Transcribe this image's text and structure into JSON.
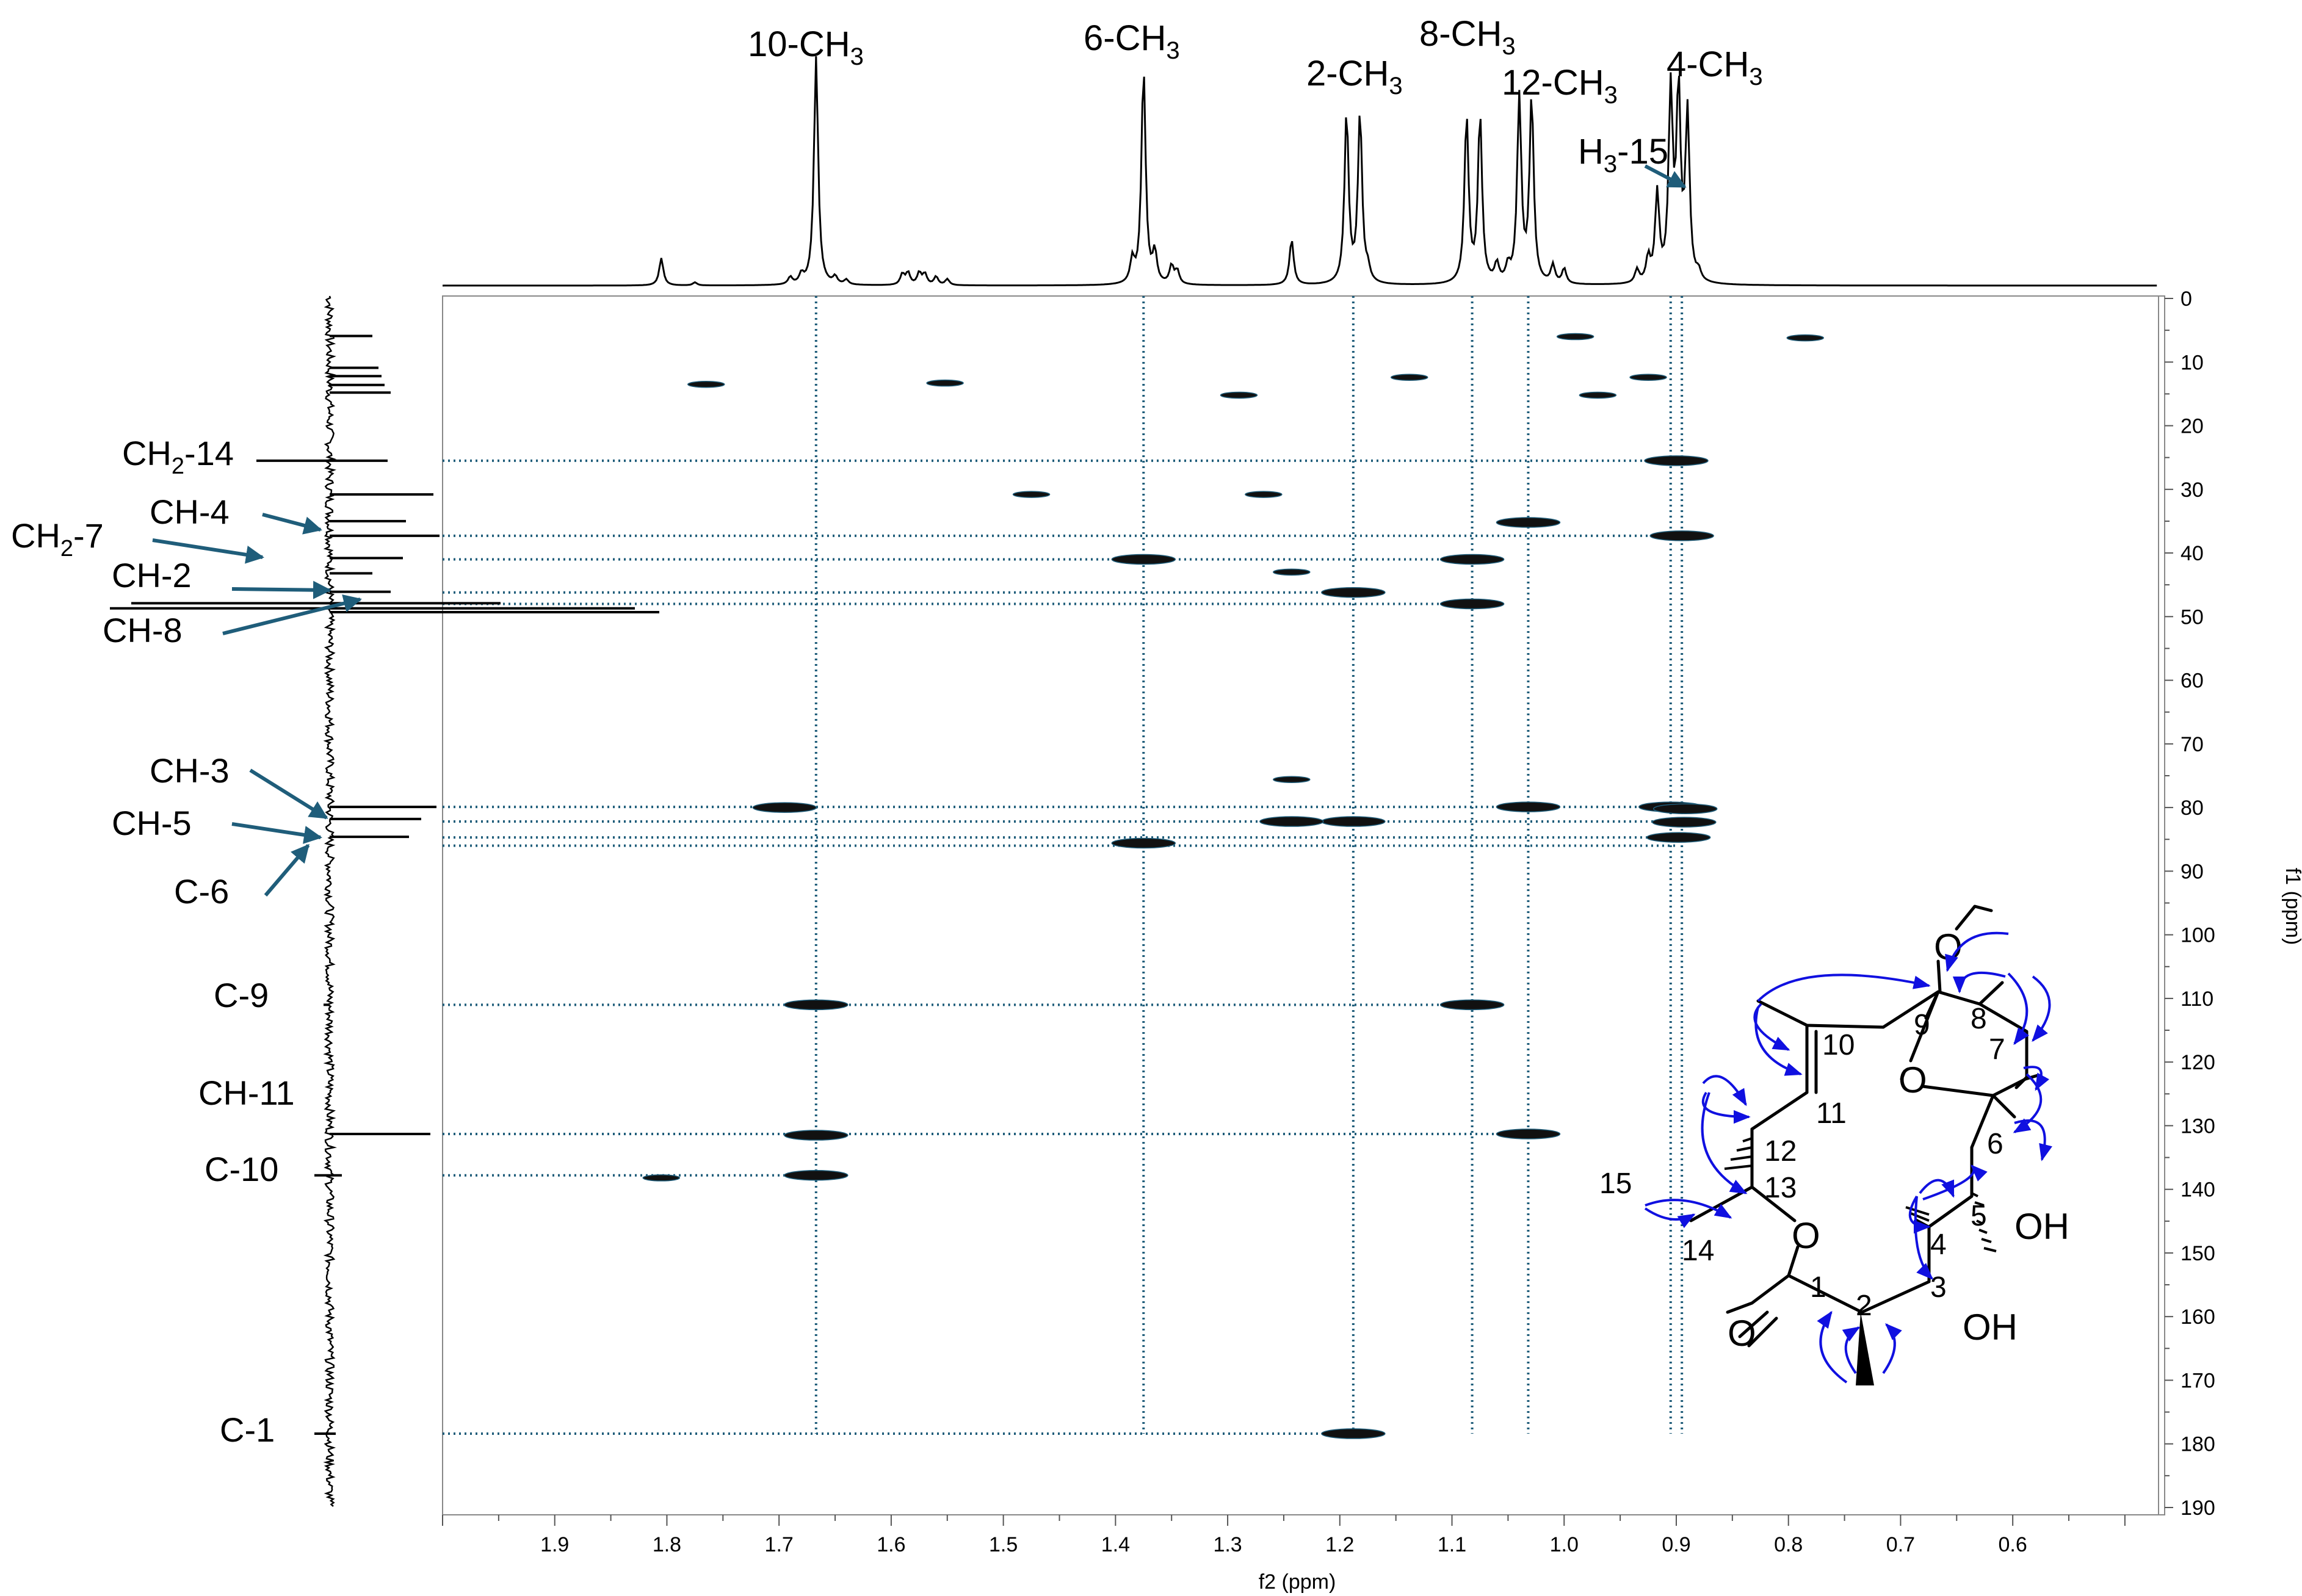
{
  "chart_data": {
    "type": "scatter",
    "subtype": "2D NMR HMBC spectrum with 1H and 13C projections",
    "xlabel": "f2 (ppm)",
    "ylabel": "f1 (ppm)",
    "xlim": [
      2.0,
      0.47
    ],
    "ylim": [
      0,
      191
    ],
    "x_reversed": true,
    "y_reversed": true,
    "grid": false,
    "x_ticks": [
      "1.9",
      "1.8",
      "1.7",
      "1.6",
      "1.5",
      "1.4",
      "1.3",
      "1.2",
      "1.1",
      "1.0",
      "0.9",
      "0.8",
      "0.7",
      "0.6"
    ],
    "y_ticks": [
      "0",
      "10",
      "20",
      "30",
      "40",
      "50",
      "60",
      "70",
      "80",
      "90",
      "100",
      "110",
      "120",
      "130",
      "140",
      "150",
      "160",
      "170",
      "180",
      "190"
    ],
    "proton_labels": [
      {
        "text": "10-CH",
        "sub": "3"
      },
      {
        "text": "6-CH",
        "sub": "3"
      },
      {
        "text": "2-CH",
        "sub": "3"
      },
      {
        "text": "8-CH",
        "sub": "3"
      },
      {
        "text": "12-CH",
        "sub": "3"
      },
      {
        "text": "4-CH",
        "sub": "3"
      },
      {
        "text": "H",
        "sub": "3",
        "suffix": "-15"
      }
    ],
    "carbon_labels": [
      {
        "text": "CH",
        "sub": "2",
        "suffix": "-14"
      },
      {
        "text": "CH-4"
      },
      {
        "text": "CH",
        "sub": "2",
        "suffix": "-7"
      },
      {
        "text": "CH-2"
      },
      {
        "text": "CH-8"
      },
      {
        "text": "CH-3"
      },
      {
        "text": "CH-5"
      },
      {
        "text": "C-6"
      },
      {
        "text": "C-9"
      },
      {
        "text": "CH-11"
      },
      {
        "text": "C-10"
      },
      {
        "text": "C-1"
      }
    ],
    "cross_peaks": [
      {
        "x": 0.99,
        "y": 6.0
      },
      {
        "x": 0.785,
        "y": 6.2
      },
      {
        "x": 1.765,
        "y": 13.5
      },
      {
        "x": 1.552,
        "y": 13.3
      },
      {
        "x": 1.29,
        "y": 15.2
      },
      {
        "x": 1.138,
        "y": 12.4
      },
      {
        "x": 0.97,
        "y": 15.2
      },
      {
        "x": 0.925,
        "y": 12.4
      },
      {
        "x": 0.9,
        "y": 25.5
      },
      {
        "x": 1.475,
        "y": 30.8
      },
      {
        "x": 1.268,
        "y": 30.8
      },
      {
        "x": 1.032,
        "y": 35.2
      },
      {
        "x": 0.895,
        "y": 37.3
      },
      {
        "x": 1.375,
        "y": 41.0
      },
      {
        "x": 1.082,
        "y": 41.0
      },
      {
        "x": 1.243,
        "y": 43.0
      },
      {
        "x": 1.188,
        "y": 46.2
      },
      {
        "x": 1.082,
        "y": 48.0
      },
      {
        "x": 1.243,
        "y": 75.6
      },
      {
        "x": 1.695,
        "y": 80.0
      },
      {
        "x": 1.032,
        "y": 79.9
      },
      {
        "x": 0.905,
        "y": 79.9
      },
      {
        "x": 0.892,
        "y": 80.2
      },
      {
        "x": 1.188,
        "y": 82.2
      },
      {
        "x": 1.243,
        "y": 82.2
      },
      {
        "x": 0.893,
        "y": 82.3
      },
      {
        "x": 0.898,
        "y": 84.7
      },
      {
        "x": 1.375,
        "y": 85.6
      },
      {
        "x": 1.667,
        "y": 111.0
      },
      {
        "x": 1.082,
        "y": 111.0
      },
      {
        "x": 1.667,
        "y": 131.5
      },
      {
        "x": 1.032,
        "y": 131.3
      },
      {
        "x": 1.805,
        "y": 138.2
      },
      {
        "x": 1.667,
        "y": 137.8
      },
      {
        "x": 1.188,
        "y": 178.4
      }
    ],
    "proton_guides": [
      1.667,
      1.375,
      1.188,
      1.082,
      1.032,
      0.905,
      0.895
    ],
    "carbon_guides": [
      25.5,
      37.3,
      41.0,
      46.2,
      48.0,
      79.9,
      82.2,
      84.7,
      86.0,
      111.0,
      131.3,
      137.8,
      178.4
    ],
    "structure": {
      "atom_numbers": [
        "1",
        "2",
        "3",
        "4",
        "5",
        "6",
        "7",
        "8",
        "9",
        "10",
        "11",
        "12",
        "13",
        "14",
        "15"
      ],
      "groups": [
        "O",
        "O",
        "O",
        "O",
        "OH",
        "OH"
      ]
    }
  }
}
